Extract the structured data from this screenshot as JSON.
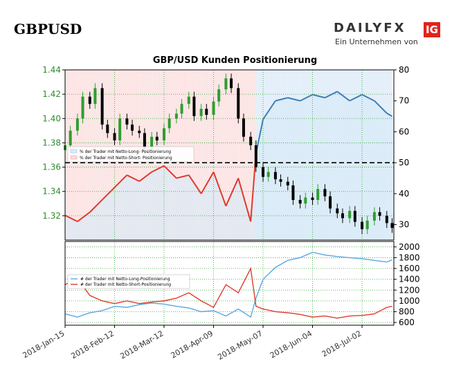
{
  "header": {
    "pair": "GBPUSD",
    "brand_word": "DAILYFX",
    "brand_badge": "IG",
    "brand_tagline": "Ein Unternehmen von"
  },
  "colors": {
    "candle_up": "#2e9e2e",
    "candle_down": "#000000",
    "long": "#3f7fb6",
    "short": "#e0392b",
    "long_fill": "#d9e9f7",
    "short_fill": "#fbdcdc",
    "grid": "#2e9e2e",
    "brand_red": "#e2231a"
  },
  "chart_data": [
    {
      "type": "line",
      "title": "GBP/USD Kunden Positionierung",
      "x_ticks": [
        "2018-Jan-15",
        "2018-Feb-12",
        "2018-Mar-12",
        "2018-Apr-09",
        "2018-May-07",
        "2018-Jun-04",
        "2018-Jul-02"
      ],
      "y_left_ticks": [
        "1.44",
        "1.42",
        "1.40",
        "1.38",
        "1.36",
        "1.34",
        "1.32"
      ],
      "y_left_range": [
        1.3,
        1.44
      ],
      "y_right_ticks": [
        "80",
        "70",
        "60",
        "50",
        "40",
        "30"
      ],
      "y_right_range": [
        25,
        80
      ],
      "reference_line": 50,
      "legend_placement": "upper-left",
      "legend": [
        "% der Trader mit Netto-Long- Positionierung",
        "% der Trader mit Netto-Short- Positionierung"
      ],
      "series": [
        {
          "name": "GBPUSD",
          "kind": "candlestick-close",
          "x": [
            "2018-01-15",
            "2018-01-18",
            "2018-01-22",
            "2018-01-25",
            "2018-01-29",
            "2018-02-01",
            "2018-02-05",
            "2018-02-08",
            "2018-02-12",
            "2018-02-15",
            "2018-02-19",
            "2018-02-22",
            "2018-02-26",
            "2018-03-01",
            "2018-03-05",
            "2018-03-08",
            "2018-03-12",
            "2018-03-15",
            "2018-03-19",
            "2018-03-22",
            "2018-03-26",
            "2018-03-29",
            "2018-04-02",
            "2018-04-05",
            "2018-04-09",
            "2018-04-12",
            "2018-04-16",
            "2018-04-19",
            "2018-04-23",
            "2018-04-26",
            "2018-04-30",
            "2018-05-03",
            "2018-05-07",
            "2018-05-10",
            "2018-05-14",
            "2018-05-17",
            "2018-05-21",
            "2018-05-24",
            "2018-05-28",
            "2018-05-31",
            "2018-06-04",
            "2018-06-07",
            "2018-06-11",
            "2018-06-14",
            "2018-06-18",
            "2018-06-21",
            "2018-06-25",
            "2018-06-28",
            "2018-07-02",
            "2018-07-05",
            "2018-07-09",
            "2018-07-12",
            "2018-07-16",
            "2018-07-19"
          ],
          "values": [
            1.378,
            1.39,
            1.4,
            1.418,
            1.412,
            1.425,
            1.395,
            1.388,
            1.382,
            1.4,
            1.395,
            1.39,
            1.388,
            1.375,
            1.385,
            1.382,
            1.392,
            1.4,
            1.404,
            1.412,
            1.418,
            1.402,
            1.408,
            1.403,
            1.414,
            1.424,
            1.433,
            1.425,
            1.4,
            1.385,
            1.378,
            1.36,
            1.352,
            1.356,
            1.35,
            1.348,
            1.345,
            1.333,
            1.33,
            1.335,
            1.333,
            1.342,
            1.336,
            1.326,
            1.322,
            1.318,
            1.324,
            1.315,
            1.309,
            1.316,
            1.323,
            1.32,
            1.314,
            1.31
          ]
        },
        {
          "name": "% der Trader mit Netto-Long- Positionierung",
          "x": [
            "2018-01-15",
            "2018-01-22",
            "2018-01-29",
            "2018-02-05",
            "2018-02-12",
            "2018-02-19",
            "2018-02-26",
            "2018-03-05",
            "2018-03-12",
            "2018-03-19",
            "2018-03-26",
            "2018-04-02",
            "2018-04-09",
            "2018-04-16",
            "2018-04-23",
            "2018-04-30",
            "2018-05-03",
            "2018-05-07",
            "2018-05-14",
            "2018-05-21",
            "2018-05-28",
            "2018-06-04",
            "2018-06-11",
            "2018-06-18",
            "2018-06-25",
            "2018-07-02",
            "2018-07-09",
            "2018-07-16",
            "2018-07-19"
          ],
          "values": [
            33,
            31,
            34,
            38,
            42,
            46,
            44,
            47,
            49,
            45,
            46,
            40,
            47,
            36,
            45,
            31,
            53,
            64,
            70,
            71,
            70,
            72,
            71,
            73,
            70,
            72,
            70,
            66,
            65
          ]
        },
        {
          "name": "% der Trader mit Netto-Short- Positionierung",
          "x": [
            "2018-01-15",
            "2018-01-22",
            "2018-01-29",
            "2018-02-05",
            "2018-02-12",
            "2018-02-19",
            "2018-02-26",
            "2018-03-05",
            "2018-03-12",
            "2018-03-19",
            "2018-03-26",
            "2018-04-02",
            "2018-04-09",
            "2018-04-16",
            "2018-04-23",
            "2018-04-30",
            "2018-05-03"
          ],
          "values": [
            33,
            31,
            34,
            38,
            42,
            46,
            44,
            47,
            49,
            45,
            46,
            40,
            47,
            36,
            45,
            31,
            53
          ]
        }
      ]
    },
    {
      "type": "line",
      "y_right_ticks": [
        "2000",
        "1800",
        "1600",
        "1400",
        "1200",
        "1000",
        "800",
        "600"
      ],
      "y_right_range": [
        550,
        2100
      ],
      "legend_placement": "upper-left",
      "legend": [
        "# der Trader mit Netto-Long-Positionierung",
        "# der Trader mit Netto-Short-Positionierung"
      ],
      "series": [
        {
          "name": "# der Trader mit Netto-Long-Positionierung",
          "x": [
            "2018-01-15",
            "2018-01-22",
            "2018-01-29",
            "2018-02-05",
            "2018-02-12",
            "2018-02-19",
            "2018-02-26",
            "2018-03-05",
            "2018-03-12",
            "2018-03-19",
            "2018-03-26",
            "2018-04-02",
            "2018-04-09",
            "2018-04-16",
            "2018-04-23",
            "2018-04-30",
            "2018-05-03",
            "2018-05-07",
            "2018-05-14",
            "2018-05-21",
            "2018-05-28",
            "2018-06-04",
            "2018-06-11",
            "2018-06-18",
            "2018-06-25",
            "2018-07-02",
            "2018-07-09",
            "2018-07-16",
            "2018-07-19"
          ],
          "values": [
            760,
            700,
            780,
            820,
            900,
            880,
            930,
            960,
            940,
            900,
            870,
            800,
            820,
            720,
            850,
            700,
            1050,
            1400,
            1620,
            1750,
            1800,
            1900,
            1850,
            1820,
            1800,
            1780,
            1750,
            1720,
            1760
          ]
        },
        {
          "name": "# der Trader mit Netto-Short-Positionierung",
          "x": [
            "2018-01-15",
            "2018-01-22",
            "2018-01-29",
            "2018-02-05",
            "2018-02-12",
            "2018-02-19",
            "2018-02-26",
            "2018-03-05",
            "2018-03-12",
            "2018-03-19",
            "2018-03-26",
            "2018-04-02",
            "2018-04-09",
            "2018-04-16",
            "2018-04-23",
            "2018-04-30",
            "2018-05-03",
            "2018-05-07",
            "2018-05-14",
            "2018-05-21",
            "2018-05-28",
            "2018-06-04",
            "2018-06-11",
            "2018-06-18",
            "2018-06-25",
            "2018-07-02",
            "2018-07-09",
            "2018-07-16",
            "2018-07-19"
          ],
          "values": [
            1300,
            1420,
            1100,
            1000,
            950,
            1000,
            950,
            980,
            1000,
            1050,
            1150,
            1000,
            880,
            1300,
            1150,
            1600,
            900,
            850,
            800,
            780,
            750,
            700,
            720,
            680,
            720,
            730,
            760,
            880,
            900
          ]
        }
      ]
    }
  ]
}
